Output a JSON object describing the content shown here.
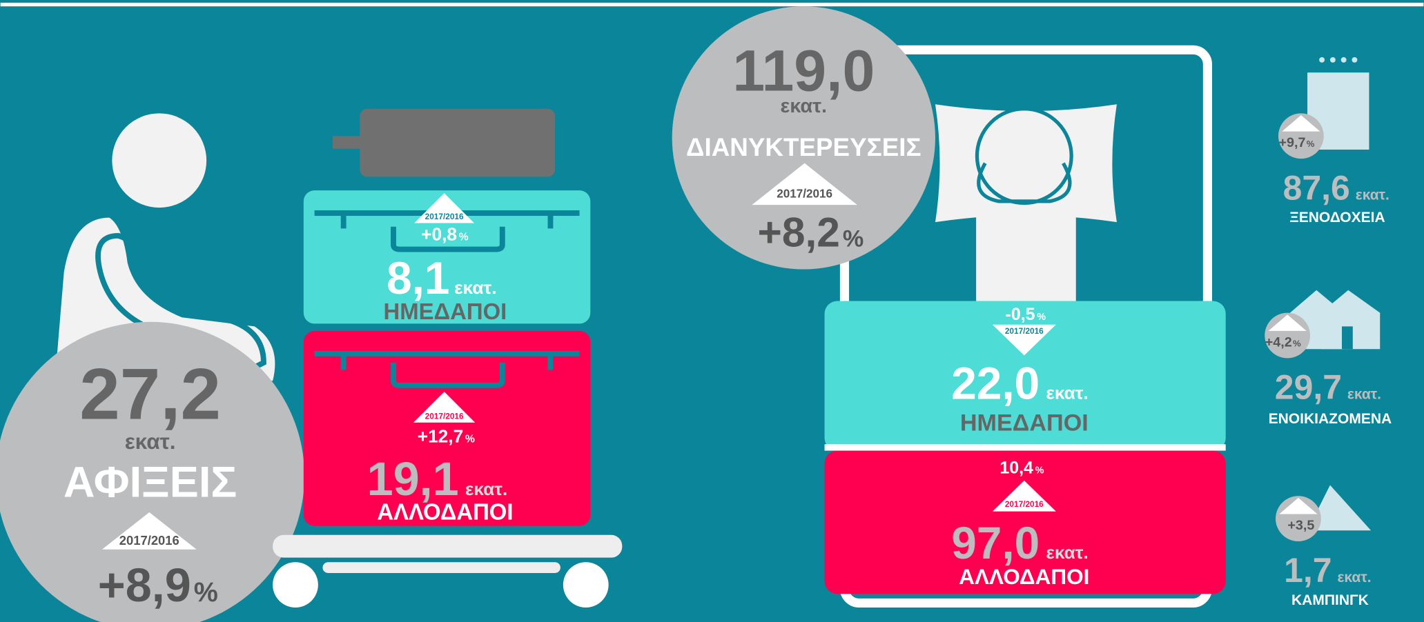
{
  "arrivals": {
    "total": {
      "value": "27,2",
      "unit": "εκατ.",
      "label": "ΑΦΙΞΕΙΣ",
      "period": "2017/2016",
      "change": "+8,9",
      "change_unit": "%"
    },
    "domestic": {
      "value": "8,1",
      "unit": "εκατ.",
      "label": "ΗΜΕΔΑΠΟΙ",
      "period": "2017/2016",
      "change": "+0,8",
      "change_unit": "%"
    },
    "foreign": {
      "value": "19,1",
      "unit": "εκατ.",
      "label": "ΑΛΛΟΔΑΠΟΙ",
      "period": "2017/2016",
      "change": "+12,7",
      "change_unit": "%"
    }
  },
  "overnights": {
    "total": {
      "value": "119,0",
      "unit": "εκατ.",
      "label": "ΔΙΑΝΥΚΤΕΡΕΥΣΕΙΣ",
      "period": "2017/2016",
      "change": "+8,2",
      "change_unit": "%"
    },
    "domestic": {
      "value": "22,0",
      "unit": "εκατ.",
      "label": "ΗΜΕΔΑΠΟΙ",
      "period": "2017/2016",
      "change": "-0,5",
      "change_unit": "%"
    },
    "foreign": {
      "value": "97,0",
      "unit": "εκατ.",
      "label": "ΑΛΛΟΔΑΠΟΙ",
      "period": "2017/2016",
      "change": "10,4",
      "change_unit": "%"
    }
  },
  "accommodation": [
    {
      "value": "87,6",
      "unit": "εκατ.",
      "label": "ΞΕΝΟΔΟΧΕΙΑ",
      "change": "+9,7",
      "change_unit": "%"
    },
    {
      "value": "29,7",
      "unit": "εκατ.",
      "label": "ΕΝΟΙΚΙΑΖΟΜΕΝΑ",
      "change": "+4,2",
      "change_unit": "%"
    },
    {
      "value": "1,7",
      "unit": "εκατ.",
      "label": "ΚΑΜΠΙΝΓΚ",
      "change": "+3,5"
    }
  ]
}
